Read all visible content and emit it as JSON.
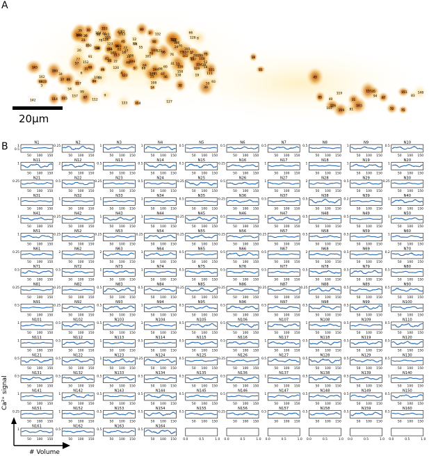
{
  "figure": {
    "panel_a_label": "A",
    "panel_b_label": "B",
    "scalebar_label": "20μm",
    "y_axis_label": "Ca²⁺ signal",
    "x_axis_label": "# Volume"
  },
  "colors": {
    "trace": "#2a6eb5",
    "neuron_core": "#b8561a",
    "neuron_glow": "#f2b440",
    "background_glow": "#fff4cc"
  },
  "panel_a": {
    "neuron_numbers": [
      "1",
      "2",
      "3",
      "4",
      "5",
      "6",
      "7",
      "8",
      "9",
      "10",
      "11",
      "12",
      "13",
      "14",
      "15",
      "16",
      "17",
      "18",
      "19",
      "20",
      "21",
      "22",
      "23",
      "24",
      "25",
      "26",
      "27",
      "28",
      "29",
      "30",
      "31",
      "32",
      "33",
      "34",
      "35",
      "36",
      "37",
      "38",
      "39",
      "40",
      "41",
      "42",
      "43",
      "44",
      "45",
      "46",
      "47",
      "48",
      "49",
      "50",
      "51",
      "52",
      "53",
      "54",
      "55",
      "56",
      "57",
      "58",
      "59",
      "60",
      "61",
      "62",
      "63",
      "64",
      "65",
      "66",
      "67",
      "68",
      "69",
      "70",
      "71",
      "72",
      "73",
      "74",
      "75",
      "76",
      "77",
      "78",
      "79",
      "80",
      "81",
      "82",
      "83",
      "84",
      "85",
      "86",
      "87",
      "88",
      "89",
      "90",
      "91",
      "92",
      "93",
      "94",
      "95",
      "96",
      "97",
      "98",
      "99",
      "100",
      "101",
      "102",
      "103",
      "104",
      "105",
      "106",
      "107",
      "108",
      "109",
      "110",
      "111",
      "112",
      "113",
      "114",
      "115",
      "116",
      "117",
      "118",
      "119",
      "120",
      "121",
      "122",
      "123",
      "124",
      "125",
      "126",
      "127",
      "128",
      "129",
      "130",
      "131",
      "132",
      "133",
      "134",
      "135",
      "136",
      "137",
      "138",
      "139",
      "140",
      "141",
      "142",
      "143",
      "144",
      "145",
      "146",
      "147",
      "148",
      "149",
      "150",
      "151",
      "152",
      "153",
      "154",
      "155",
      "156",
      "157",
      "158",
      "159",
      "160",
      "161",
      "162",
      "163",
      "164"
    ]
  },
  "chart_data": {
    "type": "line",
    "x_ticks": [
      "50",
      "100",
      "150"
    ],
    "last_row_x_ticks": [
      "0.0",
      "0.5",
      "1.0"
    ],
    "panels": [
      {
        "name": "N1",
        "y": [
          1,
          0.5
        ]
      },
      {
        "name": "N2",
        "y": [
          0.25
        ]
      },
      {
        "name": "N3",
        "y": [
          1
        ]
      },
      {
        "name": "N4",
        "y": [
          1
        ]
      },
      {
        "name": "N5",
        "y": [
          0.5
        ]
      },
      {
        "name": "N6",
        "y": [
          0.5
        ]
      },
      {
        "name": "N7",
        "y": [
          0.5
        ]
      },
      {
        "name": "N8",
        "y": [
          0.5
        ]
      },
      {
        "name": "N9",
        "y": [
          1
        ]
      },
      {
        "name": "N10",
        "y": [
          0.5
        ]
      },
      {
        "name": "N11",
        "y": [
          1
        ]
      },
      {
        "name": "N12",
        "y": [
          2
        ]
      },
      {
        "name": "N13",
        "y": [
          0.5
        ]
      },
      {
        "name": "N14",
        "y": [
          0.5
        ]
      },
      {
        "name": "N15",
        "y": [
          0.5
        ]
      },
      {
        "name": "N16",
        "y": [
          0.25
        ]
      },
      {
        "name": "N17",
        "y": [
          1
        ]
      },
      {
        "name": "N18",
        "y": [
          1
        ]
      },
      {
        "name": "N19",
        "y": [
          1
        ]
      },
      {
        "name": "N20",
        "y": [
          1
        ]
      },
      {
        "name": "N21",
        "y": [
          0.25
        ]
      },
      {
        "name": "N22",
        "y": [
          0.5
        ]
      },
      {
        "name": "N23",
        "y": [
          0.25
        ]
      },
      {
        "name": "N24",
        "y": [
          0.5
        ]
      },
      {
        "name": "N25",
        "y": [
          0.25
        ]
      },
      {
        "name": "N26",
        "y": [
          0.5
        ]
      },
      {
        "name": "N27",
        "y": [
          1
        ]
      },
      {
        "name": "N28",
        "y": [
          2
        ]
      },
      {
        "name": "N29",
        "y": [
          0.5
        ]
      },
      {
        "name": "N30",
        "y": [
          0.25
        ]
      },
      {
        "name": "N31",
        "y": [
          1
        ]
      },
      {
        "name": "N32",
        "y": [
          1
        ]
      },
      {
        "name": "N33",
        "y": [
          1
        ]
      },
      {
        "name": "N34",
        "y": [
          1
        ]
      },
      {
        "name": "N35",
        "y": [
          0.5
        ]
      },
      {
        "name": "N36",
        "y": [
          0.25
        ]
      },
      {
        "name": "N37",
        "y": [
          0.5
        ]
      },
      {
        "name": "N38",
        "y": [
          0.5
        ]
      },
      {
        "name": "N39",
        "y": [
          0.2
        ]
      },
      {
        "name": "N40",
        "y": [
          1
        ]
      },
      {
        "name": "N41",
        "y": [
          1
        ]
      },
      {
        "name": "N42",
        "y": [
          0.25
        ]
      },
      {
        "name": "N43",
        "y": [
          1
        ]
      },
      {
        "name": "N44",
        "y": [
          1
        ]
      },
      {
        "name": "N45",
        "y": [
          0.25
        ]
      },
      {
        "name": "N46",
        "y": [
          0.5
        ]
      },
      {
        "name": "N47",
        "y": [
          1
        ]
      },
      {
        "name": "N48",
        "y": [
          0.5
        ]
      },
      {
        "name": "N49",
        "y": [
          0.5
        ]
      },
      {
        "name": "N50",
        "y": [
          1
        ]
      },
      {
        "name": "N51",
        "y": [
          1
        ]
      },
      {
        "name": "N52",
        "y": [
          0.25
        ]
      },
      {
        "name": "N53",
        "y": [
          0.25
        ]
      },
      {
        "name": "N54",
        "y": [
          0.25
        ]
      },
      {
        "name": "N55",
        "y": [
          0.25
        ]
      },
      {
        "name": "N56",
        "y": [
          0.25
        ]
      },
      {
        "name": "N57",
        "y": [
          0.25
        ]
      },
      {
        "name": "N58",
        "y": [
          0.5
        ]
      },
      {
        "name": "N59",
        "y": [
          0.5
        ]
      },
      {
        "name": "N60",
        "y": [
          1
        ]
      },
      {
        "name": "N61",
        "y": [
          0.25
        ]
      },
      {
        "name": "N62",
        "y": [
          2
        ]
      },
      {
        "name": "N63",
        "y": [
          2
        ]
      },
      {
        "name": "N64",
        "y": [
          1
        ]
      },
      {
        "name": "N65",
        "y": [
          0.5
        ]
      },
      {
        "name": "N66",
        "y": [
          0.5
        ]
      },
      {
        "name": "N67",
        "y": [
          0.5
        ]
      },
      {
        "name": "N68",
        "y": [
          2
        ]
      },
      {
        "name": "N69",
        "y": [
          0.5
        ]
      },
      {
        "name": "N70",
        "y": [
          0.2
        ]
      },
      {
        "name": "N71",
        "y": [
          0.5
        ]
      },
      {
        "name": "N72",
        "y": [
          0.5
        ]
      },
      {
        "name": "N73",
        "y": [
          1
        ]
      },
      {
        "name": "N74",
        "y": [
          1
        ]
      },
      {
        "name": "N75",
        "y": [
          0.5
        ]
      },
      {
        "name": "N76",
        "y": [
          0.5
        ]
      },
      {
        "name": "N77",
        "y": [
          0.5
        ]
      },
      {
        "name": "N78",
        "y": [
          0.5
        ]
      },
      {
        "name": "N79",
        "y": [
          0.5
        ]
      },
      {
        "name": "N80",
        "y": [
          0.5
        ]
      },
      {
        "name": "N81",
        "y": [
          0.25
        ]
      },
      {
        "name": "N82",
        "y": [
          0.25
        ]
      },
      {
        "name": "N83",
        "y": [
          0.5
        ]
      },
      {
        "name": "N84",
        "y": [
          0.5
        ]
      },
      {
        "name": "N85",
        "y": [
          0.25
        ]
      },
      {
        "name": "N86",
        "y": [
          0.25
        ]
      },
      {
        "name": "N87",
        "y": [
          0.25
        ]
      },
      {
        "name": "N88",
        "y": [
          0.25
        ]
      },
      {
        "name": "N89",
        "y": [
          0.5
        ]
      },
      {
        "name": "N90",
        "y": [
          0.5
        ]
      },
      {
        "name": "N91",
        "y": [
          0.5
        ]
      },
      {
        "name": "N92",
        "y": [
          0.25
        ]
      },
      {
        "name": "N93",
        "y": [
          0.5
        ]
      },
      {
        "name": "N94",
        "y": [
          1
        ]
      },
      {
        "name": "N95",
        "y": [
          0.5
        ]
      },
      {
        "name": "N96",
        "y": [
          0.5
        ]
      },
      {
        "name": "N97",
        "y": [
          0.5
        ]
      },
      {
        "name": "N98",
        "y": [
          0.5
        ]
      },
      {
        "name": "N99",
        "y": [
          0.5
        ]
      },
      {
        "name": "N100",
        "y": [
          1
        ]
      },
      {
        "name": "N101",
        "y": [
          1
        ]
      },
      {
        "name": "N102",
        "y": [
          0.5
        ]
      },
      {
        "name": "N103",
        "y": [
          0.5
        ]
      },
      {
        "name": "N104",
        "y": [
          1
        ]
      },
      {
        "name": "N105",
        "y": [
          0.5
        ]
      },
      {
        "name": "N106",
        "y": [
          0.5
        ]
      },
      {
        "name": "N107",
        "y": [
          1
        ]
      },
      {
        "name": "N108",
        "y": [
          1
        ]
      },
      {
        "name": "N109",
        "y": [
          0.5
        ]
      },
      {
        "name": "N110",
        "y": [
          0.5
        ]
      },
      {
        "name": "N111",
        "y": [
          1
        ]
      },
      {
        "name": "N112",
        "y": [
          0.5
        ]
      },
      {
        "name": "N113",
        "y": [
          1
        ]
      },
      {
        "name": "N114",
        "y": [
          0.5
        ]
      },
      {
        "name": "N115",
        "y": [
          0.5
        ]
      },
      {
        "name": "N116",
        "y": [
          0.5
        ]
      },
      {
        "name": "N117",
        "y": [
          1
        ]
      },
      {
        "name": "N118",
        "y": [
          0.5
        ]
      },
      {
        "name": "N119",
        "y": [
          0.5
        ]
      },
      {
        "name": "N120",
        "y": [
          0.5
        ]
      },
      {
        "name": "N121",
        "y": [
          0.5
        ]
      },
      {
        "name": "N122",
        "y": [
          0.5
        ]
      },
      {
        "name": "N123",
        "y": [
          1
        ]
      },
      {
        "name": "N124",
        "y": [
          0.25
        ]
      },
      {
        "name": "N125",
        "y": [
          0.5
        ]
      },
      {
        "name": "N126",
        "y": [
          0.25
        ]
      },
      {
        "name": "N127",
        "y": [
          0.5
        ]
      },
      {
        "name": "N128",
        "y": [
          0.5
        ]
      },
      {
        "name": "N129",
        "y": [
          0.5
        ]
      },
      {
        "name": "N130",
        "y": [
          0.5
        ]
      },
      {
        "name": "N131",
        "y": [
          0.5
        ]
      },
      {
        "name": "N132",
        "y": [
          0.5
        ]
      },
      {
        "name": "N133",
        "y": [
          0.5
        ]
      },
      {
        "name": "N134",
        "y": [
          0.5
        ]
      },
      {
        "name": "N135",
        "y": [
          0.5
        ]
      },
      {
        "name": "N136",
        "y": [
          0.5
        ]
      },
      {
        "name": "N137",
        "y": [
          1
        ]
      },
      {
        "name": "N138",
        "y": [
          0.5
        ]
      },
      {
        "name": "N139",
        "y": [
          0.5
        ]
      },
      {
        "name": "N140",
        "y": [
          1
        ]
      },
      {
        "name": "N141",
        "y": [
          1
        ]
      },
      {
        "name": "N142",
        "y": [
          1
        ]
      },
      {
        "name": "N143",
        "y": [
          0.5
        ]
      },
      {
        "name": "N144",
        "y": [
          0.5
        ]
      },
      {
        "name": "N145",
        "y": [
          0.5
        ]
      },
      {
        "name": "N146",
        "y": [
          0.5
        ]
      },
      {
        "name": "N147",
        "y": [
          1
        ]
      },
      {
        "name": "N148",
        "y": [
          0.5
        ]
      },
      {
        "name": "N149",
        "y": [
          0.5
        ]
      },
      {
        "name": "N150",
        "y": [
          0.5
        ]
      },
      {
        "name": "N151",
        "y": [
          0.25
        ]
      },
      {
        "name": "N152",
        "y": [
          1
        ]
      },
      {
        "name": "N153",
        "y": [
          0.5
        ]
      },
      {
        "name": "N154",
        "y": [
          0.5
        ]
      },
      {
        "name": "N155",
        "y": [
          0.5
        ]
      },
      {
        "name": "N156",
        "y": [
          0.25
        ]
      },
      {
        "name": "N157",
        "y": [
          0.5
        ]
      },
      {
        "name": "N158",
        "y": [
          0.5
        ]
      },
      {
        "name": "N159",
        "y": [
          0.5
        ]
      },
      {
        "name": "N160",
        "y": [
          0.5
        ]
      },
      {
        "name": "N161",
        "y": [
          1
        ]
      },
      {
        "name": "N162",
        "y": [
          0.5
        ]
      },
      {
        "name": "N163",
        "y": [
          0.5
        ]
      },
      {
        "name": "N164",
        "y": [
          0.5
        ]
      }
    ]
  }
}
